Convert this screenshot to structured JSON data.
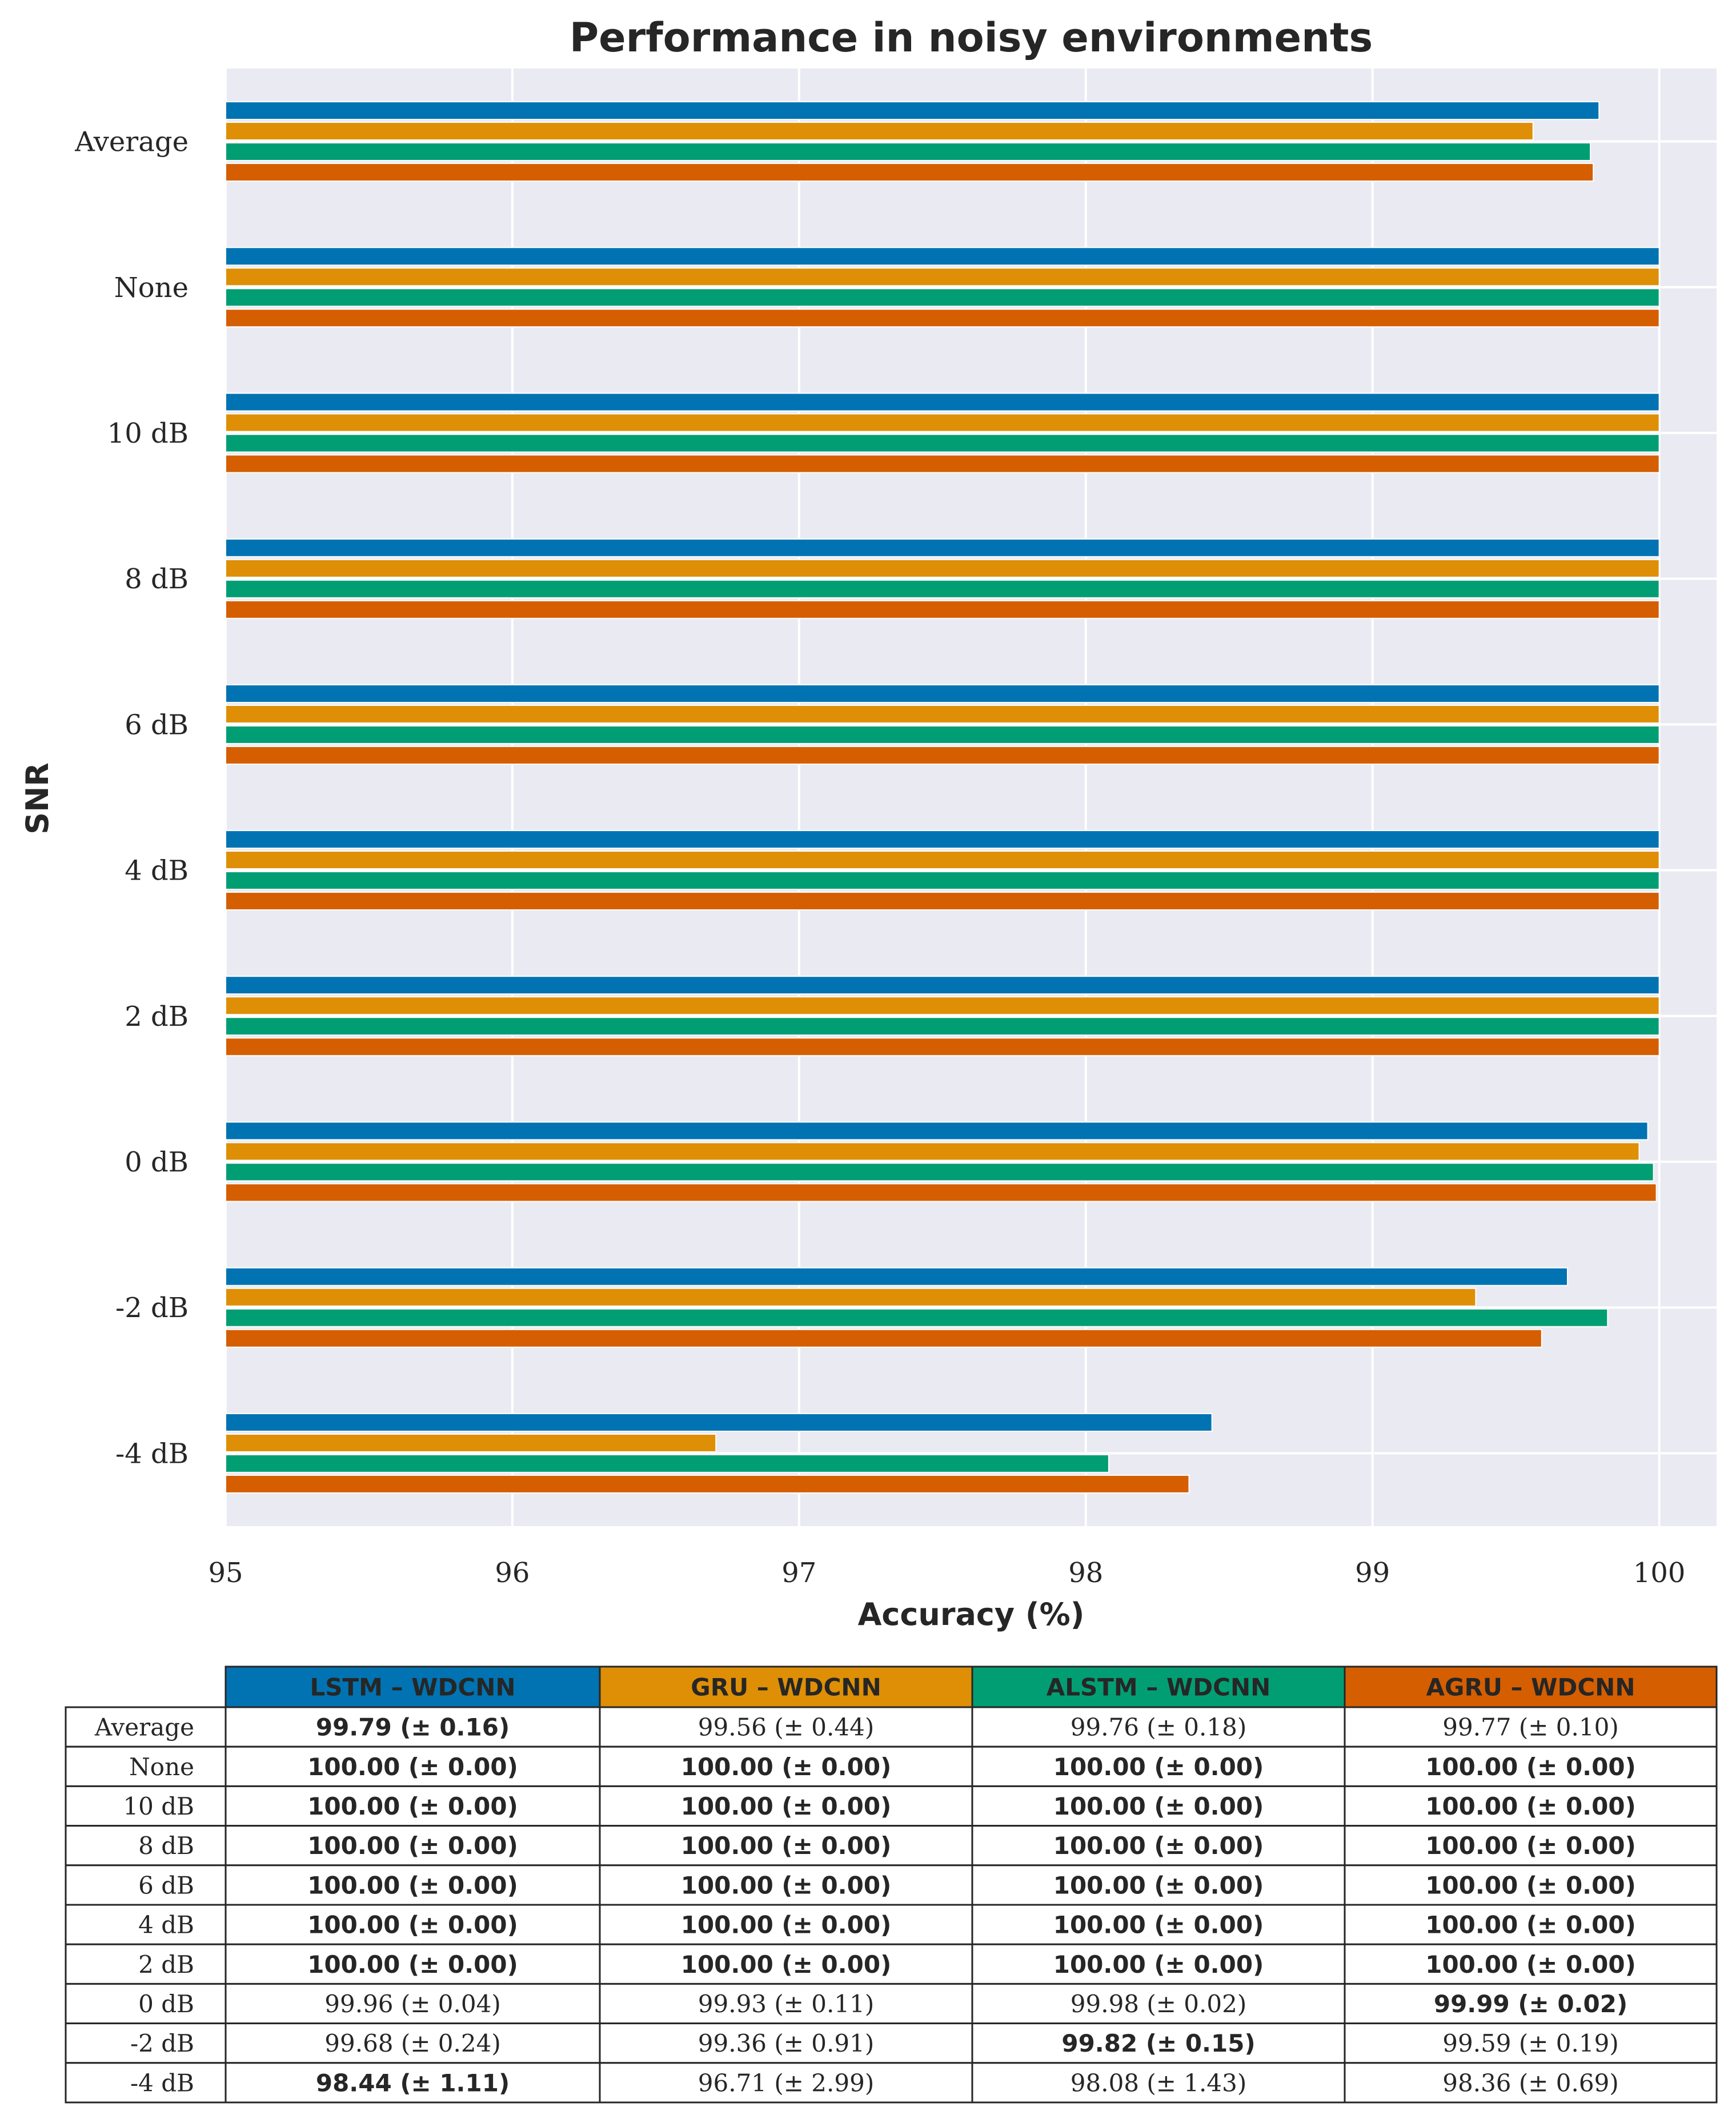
{
  "chart_data": {
    "type": "bar",
    "orientation": "horizontal",
    "title": "Performance in noisy environments",
    "xlabel": "Accuracy (%)",
    "ylabel": "SNR",
    "xlim": [
      95,
      100.2
    ],
    "xticks": [
      "95",
      "96",
      "97",
      "98",
      "99",
      "100"
    ],
    "grid": true,
    "categories": [
      "Average",
      "None",
      "10 dB",
      "8 dB",
      "6 dB",
      "4 dB",
      "2 dB",
      "0 dB",
      "-2 dB",
      "-4 dB"
    ],
    "series": [
      {
        "name": "LSTM – WDCNN",
        "color": "#0173b2",
        "values": [
          99.79,
          100.0,
          100.0,
          100.0,
          100.0,
          100.0,
          100.0,
          99.96,
          99.68,
          98.44
        ]
      },
      {
        "name": "GRU – WDCNN",
        "color": "#de8f05",
        "values": [
          99.56,
          100.0,
          100.0,
          100.0,
          100.0,
          100.0,
          100.0,
          99.93,
          99.36,
          96.71
        ]
      },
      {
        "name": "ALSTM – WDCNN",
        "color": "#029e73",
        "values": [
          99.76,
          100.0,
          100.0,
          100.0,
          100.0,
          100.0,
          100.0,
          99.98,
          99.82,
          98.08
        ]
      },
      {
        "name": "AGRU – WDCNN",
        "color": "#d55e00",
        "values": [
          99.77,
          100.0,
          100.0,
          100.0,
          100.0,
          100.0,
          100.0,
          99.99,
          99.59,
          98.36
        ]
      }
    ]
  },
  "table": {
    "columns": [
      "LSTM – WDCNN",
      "GRU – WDCNN",
      "ALSTM – WDCNN",
      "AGRU – WDCNN"
    ],
    "rows": [
      {
        "label": "Average",
        "cells": [
          "99.79 (± 0.16)",
          "99.56 (± 0.44)",
          "99.76 (± 0.18)",
          "99.77 (± 0.10)"
        ],
        "bold": [
          true,
          false,
          false,
          false
        ]
      },
      {
        "label": "None",
        "cells": [
          "100.00 (± 0.00)",
          "100.00 (± 0.00)",
          "100.00 (± 0.00)",
          "100.00 (± 0.00)"
        ],
        "bold": [
          true,
          true,
          true,
          true
        ]
      },
      {
        "label": "10 dB",
        "cells": [
          "100.00 (± 0.00)",
          "100.00 (± 0.00)",
          "100.00 (± 0.00)",
          "100.00 (± 0.00)"
        ],
        "bold": [
          true,
          true,
          true,
          true
        ]
      },
      {
        "label": "8 dB",
        "cells": [
          "100.00 (± 0.00)",
          "100.00 (± 0.00)",
          "100.00 (± 0.00)",
          "100.00 (± 0.00)"
        ],
        "bold": [
          true,
          true,
          true,
          true
        ]
      },
      {
        "label": "6 dB",
        "cells": [
          "100.00 (± 0.00)",
          "100.00 (± 0.00)",
          "100.00 (± 0.00)",
          "100.00 (± 0.00)"
        ],
        "bold": [
          true,
          true,
          true,
          true
        ]
      },
      {
        "label": "4 dB",
        "cells": [
          "100.00 (± 0.00)",
          "100.00 (± 0.00)",
          "100.00 (± 0.00)",
          "100.00 (± 0.00)"
        ],
        "bold": [
          true,
          true,
          true,
          true
        ]
      },
      {
        "label": "2 dB",
        "cells": [
          "100.00 (± 0.00)",
          "100.00 (± 0.00)",
          "100.00 (± 0.00)",
          "100.00 (± 0.00)"
        ],
        "bold": [
          true,
          true,
          true,
          true
        ]
      },
      {
        "label": "0 dB",
        "cells": [
          "99.96 (± 0.04)",
          "99.93 (± 0.11)",
          "99.98 (± 0.02)",
          "99.99 (± 0.02)"
        ],
        "bold": [
          false,
          false,
          false,
          true
        ]
      },
      {
        "label": "-2 dB",
        "cells": [
          "99.68 (± 0.24)",
          "99.36 (± 0.91)",
          "99.82 (± 0.15)",
          "99.59 (± 0.19)"
        ],
        "bold": [
          false,
          false,
          true,
          false
        ]
      },
      {
        "label": "-4 dB",
        "cells": [
          "98.44 (± 1.11)",
          "96.71 (± 2.99)",
          "98.08 (± 1.43)",
          "98.36 (± 0.69)"
        ],
        "bold": [
          true,
          false,
          false,
          false
        ]
      }
    ]
  }
}
